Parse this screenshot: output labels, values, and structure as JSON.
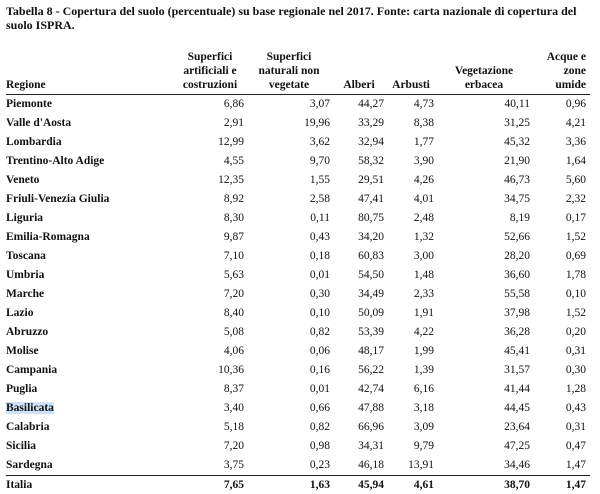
{
  "caption": "Tabella 8 - Copertura del suolo (percentuale) su base regionale nel 2017. Fonte: carta nazionale di copertura del suolo ISPRA.",
  "headers": {
    "regione": "Regione",
    "superfici_artificiali": "Superfici artificiali e costruzioni",
    "superfici_naturali": "Superfici naturali non vegetate",
    "alberi": "Alberi",
    "arbusti": "Arbusti",
    "vegetazione": "Vegetazione erbacea",
    "acque": "Acque e zone umide"
  },
  "rows": [
    {
      "name": "Piemonte",
      "v": [
        "6,86",
        "3,07",
        "44,27",
        "4,73",
        "40,11",
        "0,96"
      ],
      "highlight": false
    },
    {
      "name": "Valle d'Aosta",
      "v": [
        "2,91",
        "19,96",
        "33,29",
        "8,38",
        "31,25",
        "4,21"
      ],
      "highlight": false
    },
    {
      "name": "Lombardia",
      "v": [
        "12,99",
        "3,62",
        "32,94",
        "1,77",
        "45,32",
        "3,36"
      ],
      "highlight": false
    },
    {
      "name": "Trentino-Alto Adige",
      "v": [
        "4,55",
        "9,70",
        "58,32",
        "3,90",
        "21,90",
        "1,64"
      ],
      "highlight": false
    },
    {
      "name": "Veneto",
      "v": [
        "12,35",
        "1,55",
        "29,51",
        "4,26",
        "46,73",
        "5,60"
      ],
      "highlight": false
    },
    {
      "name": "Friuli-Venezia Giulia",
      "v": [
        "8,92",
        "2,58",
        "47,41",
        "4,01",
        "34,75",
        "2,32"
      ],
      "highlight": false
    },
    {
      "name": "Liguria",
      "v": [
        "8,30",
        "0,11",
        "80,75",
        "2,48",
        "8,19",
        "0,17"
      ],
      "highlight": false
    },
    {
      "name": "Emilia-Romagna",
      "v": [
        "9,87",
        "0,43",
        "34,20",
        "1,32",
        "52,66",
        "1,52"
      ],
      "highlight": false
    },
    {
      "name": "Toscana",
      "v": [
        "7,10",
        "0,18",
        "60,83",
        "3,00",
        "28,20",
        "0,69"
      ],
      "highlight": false
    },
    {
      "name": "Umbria",
      "v": [
        "5,63",
        "0,01",
        "54,50",
        "1,48",
        "36,60",
        "1,78"
      ],
      "highlight": false
    },
    {
      "name": "Marche",
      "v": [
        "7,20",
        "0,30",
        "34,49",
        "2,33",
        "55,58",
        "0,10"
      ],
      "highlight": false
    },
    {
      "name": "Lazio",
      "v": [
        "8,40",
        "0,10",
        "50,09",
        "1,91",
        "37,98",
        "1,52"
      ],
      "highlight": false
    },
    {
      "name": "Abruzzo",
      "v": [
        "5,08",
        "0,82",
        "53,39",
        "4,22",
        "36,28",
        "0,20"
      ],
      "highlight": false
    },
    {
      "name": "Molise",
      "v": [
        "4,06",
        "0,06",
        "48,17",
        "1,99",
        "45,41",
        "0,31"
      ],
      "highlight": false
    },
    {
      "name": "Campania",
      "v": [
        "10,36",
        "0,16",
        "56,22",
        "1,39",
        "31,57",
        "0,30"
      ],
      "highlight": false
    },
    {
      "name": "Puglia",
      "v": [
        "8,37",
        "0,01",
        "42,74",
        "6,16",
        "41,44",
        "1,28"
      ],
      "highlight": false
    },
    {
      "name": "Basilicata",
      "v": [
        "3,40",
        "0,66",
        "47,88",
        "3,18",
        "44,45",
        "0,43"
      ],
      "highlight": true
    },
    {
      "name": "Calabria",
      "v": [
        "5,18",
        "0,82",
        "66,96",
        "3,09",
        "23,64",
        "0,31"
      ],
      "highlight": false
    },
    {
      "name": "Sicilia",
      "v": [
        "7,20",
        "0,98",
        "34,31",
        "9,79",
        "47,25",
        "0,47"
      ],
      "highlight": false
    },
    {
      "name": "Sardegna",
      "v": [
        "3,75",
        "0,23",
        "46,18",
        "13,91",
        "34,46",
        "1,47"
      ],
      "highlight": false
    }
  ],
  "total": {
    "name": "Italia",
    "v": [
      "7,65",
      "1,63",
      "45,94",
      "4,61",
      "38,70",
      "1,47"
    ]
  },
  "colors": {
    "highlight": "#cfe2f6",
    "text": "#111111",
    "rule": "#222222"
  }
}
